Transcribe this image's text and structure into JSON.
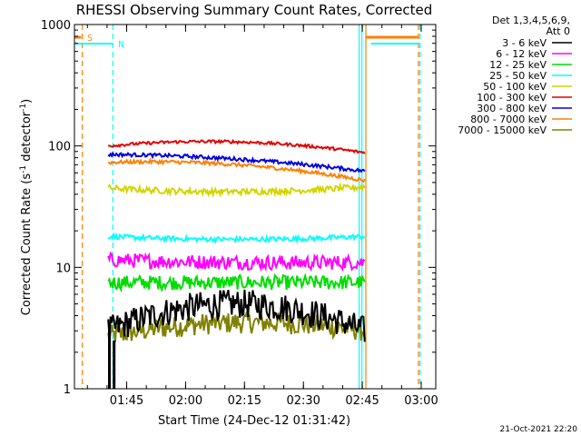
{
  "chart_data": {
    "type": "line",
    "title": "RHESSI Observing Summary Count Rates, Corrected",
    "xlabel": "Start Time (24-Dec-12 01:31:42)",
    "ylabel_main": "Corrected Count Rate (s",
    "ylabel_sup1": "-1",
    "ylabel_mid": " detector",
    "ylabel_sup2": "-1",
    "ylabel_end": ")",
    "y_scale": "log",
    "ylim": [
      1,
      1000
    ],
    "y_ticks": [
      {
        "value": 1,
        "label": "1"
      },
      {
        "value": 10,
        "label": "10"
      },
      {
        "value": 100,
        "label": "100"
      },
      {
        "value": 1000,
        "label": "1000"
      }
    ],
    "x_range_minutes": [
      0,
      92
    ],
    "x_ticks": [
      {
        "t": 13.3,
        "label": "01:45"
      },
      {
        "t": 28.3,
        "label": "02:00"
      },
      {
        "t": 43.3,
        "label": "02:15"
      },
      {
        "t": 58.3,
        "label": "02:30"
      },
      {
        "t": 73.3,
        "label": "02:45"
      },
      {
        "t": 88.3,
        "label": "03:00"
      }
    ],
    "legend_header": [
      "Det 1,3,4,5,6,9,",
      "Att 0"
    ],
    "legend_placement": "right",
    "series": [
      {
        "name": "3 - 6 keV",
        "color": "#000000"
      },
      {
        "name": "6 - 12 keV",
        "color": "#ff00ff"
      },
      {
        "name": "12 - 25 keV",
        "color": "#00dd00"
      },
      {
        "name": "25 - 50 keV",
        "color": "#00ffff"
      },
      {
        "name": "50 - 100 keV",
        "color": "#d4d400"
      },
      {
        "name": "100 - 300 keV",
        "color": "#e00000"
      },
      {
        "name": "300 - 800 keV",
        "color": "#0000e0"
      },
      {
        "name": "800 - 7000 keV",
        "color": "#ff7f00"
      },
      {
        "name": "7000 - 15000 keV",
        "color": "#808000"
      }
    ],
    "data_window_minutes": [
      8.6,
      73.9
    ],
    "series_levels": [
      {
        "name": "100 - 300 keV",
        "start": 100,
        "mid": 108,
        "end": 88
      },
      {
        "name": "300 - 800 keV",
        "start": 85,
        "mid": 78,
        "end": 62
      },
      {
        "name": "800 - 7000 keV",
        "start": 73,
        "mid": 70,
        "end": 52
      },
      {
        "name": "50 - 100 keV",
        "start": 45,
        "mid": 42,
        "end": 46
      },
      {
        "name": "25 - 50 keV",
        "start": 18,
        "mid": 17,
        "end": 18
      },
      {
        "name": "6 - 12 keV",
        "start": 11.5,
        "mid": 11,
        "end": 11
      },
      {
        "name": "12 - 25 keV",
        "start": 7.5,
        "mid": 7.5,
        "end": 7.5
      },
      {
        "name": "3 - 6 keV",
        "start": 3,
        "mid": 5,
        "end": 3
      },
      {
        "name": "7000 - 15000 keV",
        "start": 2.7,
        "mid": 3.5,
        "end": 3
      }
    ],
    "flags": [
      {
        "label": "S",
        "color": "#ff7f00"
      },
      {
        "label": "N",
        "color": "#00ffff"
      }
    ],
    "footer_date": "21-Oct-2021 22:20"
  }
}
